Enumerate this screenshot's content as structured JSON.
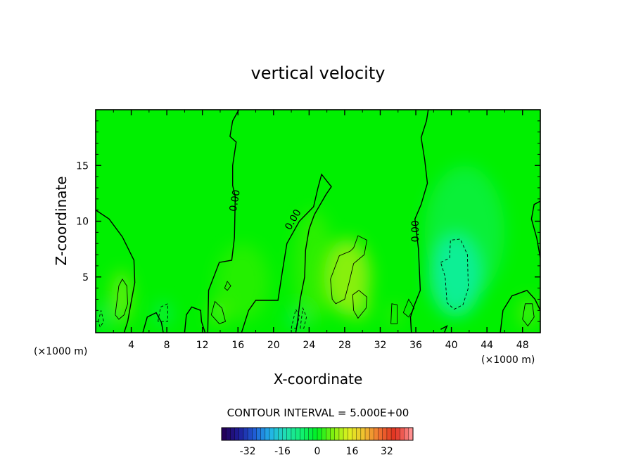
{
  "chart_data": {
    "type": "heatmap",
    "title": "vertical velocity",
    "xlabel": "X-coordinate",
    "ylabel": "Z-coordinate",
    "x_unit_label": "(×1000 m)",
    "xlim": [
      0,
      50
    ],
    "ylim": [
      0,
      20
    ],
    "x_ticks": [
      "4",
      "8",
      "12",
      "16",
      "20",
      "24",
      "28",
      "32",
      "36",
      "40",
      "44",
      "48"
    ],
    "y_ticks": [
      "5",
      "10",
      "15"
    ],
    "grid": false,
    "contour_interval_text": "CONTOUR INTERVAL = 5.000E+00",
    "contour_label": "0.00",
    "colorbar": {
      "range": [
        -44,
        44
      ],
      "tick_labels": [
        "-32",
        "-16",
        "0",
        "16",
        "32"
      ],
      "colors": [
        "#24005a",
        "#1e1e9a",
        "#2060d8",
        "#22b4e8",
        "#20e0b0",
        "#10f070",
        "#00f020",
        "#80f010",
        "#e0f020",
        "#f0c030",
        "#f07030",
        "#e03020",
        "#ff9090"
      ]
    },
    "field_colors": {
      "background": "#00f000",
      "positive": "#8ef010",
      "negative": "#10f0a0"
    },
    "zero_contours": [
      {
        "label": "0.00",
        "points": [
          [
            0,
            11.0
          ],
          [
            1.5,
            10.2
          ],
          [
            3.0,
            8.6
          ],
          [
            4.3,
            6.5
          ],
          [
            4.4,
            4.5
          ],
          [
            4.0,
            2.8
          ],
          [
            3.6,
            1.0
          ],
          [
            3.2,
            0
          ]
        ]
      },
      {
        "label": "",
        "points": [
          [
            5.3,
            0
          ],
          [
            5.8,
            1.4
          ],
          [
            6.8,
            1.8
          ],
          [
            7.4,
            0.9
          ],
          [
            7.6,
            0
          ]
        ]
      },
      {
        "label": "",
        "points": [
          [
            10.0,
            0
          ],
          [
            10.2,
            1.6
          ],
          [
            10.8,
            2.3
          ],
          [
            11.8,
            2.0
          ],
          [
            11.9,
            1.0
          ],
          [
            12.3,
            0
          ]
        ]
      },
      {
        "label": "0.00",
        "points": [
          [
            12.6,
            0
          ],
          [
            12.7,
            3.8
          ],
          [
            13.9,
            6.3
          ],
          [
            15.3,
            6.5
          ],
          [
            15.6,
            8.5
          ],
          [
            15.7,
            12.2
          ],
          [
            15.4,
            13.2
          ],
          [
            15.4,
            15.0
          ],
          [
            15.8,
            17.1
          ],
          [
            15.1,
            17.6
          ],
          [
            15.4,
            19.0
          ],
          [
            16.1,
            20.0
          ]
        ]
      },
      {
        "label": "0.00",
        "points": [
          [
            16.4,
            0
          ],
          [
            17.2,
            2.0
          ],
          [
            18.0,
            2.9
          ],
          [
            20.5,
            2.9
          ],
          [
            21.0,
            5.5
          ],
          [
            21.5,
            8.0
          ],
          [
            22.9,
            10.0
          ],
          [
            24.5,
            11.3
          ],
          [
            25.0,
            13.0
          ],
          [
            25.4,
            14.2
          ],
          [
            26.0,
            13.6
          ],
          [
            26.5,
            13.1
          ],
          [
            25.9,
            12.4
          ],
          [
            24.6,
            10.6
          ],
          [
            24.0,
            9.3
          ],
          [
            23.6,
            7.4
          ],
          [
            23.5,
            5.0
          ],
          [
            23.0,
            3.0
          ],
          [
            22.7,
            1.0
          ],
          [
            22.5,
            0
          ]
        ]
      },
      {
        "label": "0.00",
        "points": [
          [
            35.5,
            0
          ],
          [
            35.4,
            1.4
          ],
          [
            35.8,
            2.4
          ],
          [
            36.5,
            3.8
          ],
          [
            36.3,
            7.5
          ],
          [
            35.9,
            10.2
          ],
          [
            36.6,
            11.5
          ],
          [
            37.0,
            12.6
          ],
          [
            37.3,
            13.4
          ],
          [
            37.0,
            15.5
          ],
          [
            36.6,
            17.5
          ],
          [
            37.2,
            19.0
          ],
          [
            37.4,
            20.0
          ]
        ]
      },
      {
        "label": "",
        "points": [
          [
            50,
            6.7
          ],
          [
            49.6,
            8.5
          ],
          [
            49.0,
            10.2
          ],
          [
            49.3,
            11.5
          ],
          [
            50,
            11.8
          ]
        ]
      },
      {
        "label": "",
        "points": [
          [
            45.5,
            0
          ],
          [
            45.8,
            2.0
          ],
          [
            46.8,
            3.3
          ],
          [
            48.5,
            3.8
          ],
          [
            49.4,
            3.0
          ],
          [
            50,
            2.0
          ]
        ]
      },
      {
        "label": "",
        "points": [
          [
            38.8,
            0.3
          ],
          [
            39.5,
            0.6
          ],
          [
            39.2,
            0
          ]
        ]
      }
    ],
    "positive_contours": [
      {
        "points": [
          [
            2.2,
            1.6
          ],
          [
            2.6,
            4.2
          ],
          [
            3.0,
            4.8
          ],
          [
            3.5,
            4.2
          ],
          [
            3.6,
            2.6
          ],
          [
            3.2,
            1.6
          ],
          [
            2.6,
            1.2
          ],
          [
            2.2,
            1.6
          ]
        ]
      },
      {
        "points": [
          [
            26.6,
            3.0
          ],
          [
            26.4,
            4.8
          ],
          [
            27.4,
            6.9
          ],
          [
            28.6,
            7.3
          ],
          [
            29.0,
            7.6
          ],
          [
            29.5,
            8.7
          ],
          [
            30.5,
            8.3
          ],
          [
            30.2,
            7.0
          ],
          [
            29.0,
            6.2
          ],
          [
            28.5,
            4.5
          ],
          [
            28.0,
            3.0
          ],
          [
            27.0,
            2.6
          ],
          [
            26.6,
            3.0
          ]
        ]
      },
      {
        "points": [
          [
            28.9,
            3.4
          ],
          [
            29.6,
            3.8
          ],
          [
            30.5,
            3.2
          ],
          [
            30.4,
            2.2
          ],
          [
            29.5,
            1.3
          ],
          [
            29.0,
            2.0
          ],
          [
            28.9,
            3.4
          ]
        ]
      },
      {
        "points": [
          [
            13.0,
            1.6
          ],
          [
            13.4,
            2.8
          ],
          [
            14.2,
            2.2
          ],
          [
            14.6,
            1.0
          ],
          [
            13.9,
            0.8
          ],
          [
            13.0,
            1.6
          ]
        ]
      },
      {
        "points": [
          [
            48.0,
            1.2
          ],
          [
            48.3,
            2.6
          ],
          [
            49.1,
            2.6
          ],
          [
            49.3,
            1.4
          ],
          [
            48.6,
            0.6
          ],
          [
            48.0,
            1.2
          ]
        ]
      },
      {
        "points": [
          [
            33.2,
            0.8
          ],
          [
            33.3,
            2.6
          ],
          [
            33.9,
            2.5
          ],
          [
            33.9,
            0.8
          ],
          [
            33.2,
            0.8
          ]
        ]
      },
      {
        "points": [
          [
            34.6,
            1.8
          ],
          [
            35.2,
            3.0
          ],
          [
            35.8,
            2.2
          ],
          [
            35.2,
            1.4
          ],
          [
            34.6,
            1.8
          ]
        ]
      },
      {
        "points": [
          [
            14.5,
            4.0
          ],
          [
            14.8,
            4.6
          ],
          [
            15.2,
            4.2
          ],
          [
            14.8,
            3.8
          ],
          [
            14.5,
            4.0
          ]
        ]
      }
    ],
    "negative_contours": [
      {
        "points": [
          [
            38.8,
            6.3
          ],
          [
            39.8,
            6.7
          ],
          [
            39.9,
            8.3
          ],
          [
            41.0,
            8.4
          ],
          [
            41.8,
            7.0
          ],
          [
            41.9,
            4.0
          ],
          [
            41.3,
            2.5
          ],
          [
            40.3,
            2.1
          ],
          [
            39.5,
            2.7
          ],
          [
            39.3,
            5.0
          ],
          [
            38.8,
            6.3
          ]
        ]
      },
      {
        "points": [
          [
            7.0,
            1.0
          ],
          [
            7.3,
            2.3
          ],
          [
            8.1,
            2.6
          ],
          [
            8.1,
            1.0
          ],
          [
            7.0,
            1.0
          ]
        ]
      },
      {
        "points": [
          [
            22.0,
            0.4
          ],
          [
            22.5,
            2.1
          ],
          [
            22.9,
            1.5
          ],
          [
            22.6,
            0.4
          ],
          [
            22.0,
            0.4
          ]
        ]
      },
      {
        "points": [
          [
            23.0,
            0.4
          ],
          [
            23.3,
            2.2
          ],
          [
            23.7,
            1.4
          ],
          [
            23.4,
            0.4
          ],
          [
            23.0,
            0.4
          ]
        ]
      },
      {
        "points": [
          [
            0.3,
            1.0
          ],
          [
            0.6,
            2.0
          ],
          [
            0.9,
            1.0
          ],
          [
            0.5,
            0.5
          ],
          [
            0.3,
            1.0
          ]
        ]
      }
    ],
    "positive_regions": [
      {
        "cx": 28.3,
        "cy": 5.0,
        "rx": 2.6,
        "ry": 3.4,
        "strength": 0.95
      },
      {
        "cx": 29.6,
        "cy": 2.5,
        "rx": 1.2,
        "ry": 1.4,
        "strength": 0.7
      },
      {
        "cx": 2.9,
        "cy": 3.2,
        "rx": 1.1,
        "ry": 2.4,
        "strength": 0.7
      },
      {
        "cx": 13.8,
        "cy": 1.8,
        "rx": 1.0,
        "ry": 1.2,
        "strength": 0.5
      },
      {
        "cx": 48.6,
        "cy": 1.8,
        "rx": 1.0,
        "ry": 1.4,
        "strength": 0.5
      },
      {
        "cx": 33.6,
        "cy": 1.6,
        "rx": 0.6,
        "ry": 1.1,
        "strength": 0.4
      },
      {
        "cx": 24.5,
        "cy": 6.0,
        "rx": 2.2,
        "ry": 5.0,
        "strength": 0.3
      },
      {
        "cx": 16.5,
        "cy": 4.5,
        "rx": 3.0,
        "ry": 3.5,
        "strength": 0.25
      }
    ],
    "negative_regions": [
      {
        "cx": 40.5,
        "cy": 5.2,
        "rx": 3.0,
        "ry": 3.8,
        "strength": 0.9
      },
      {
        "cx": 41.5,
        "cy": 9.0,
        "rx": 4.5,
        "ry": 6.0,
        "strength": 0.35
      },
      {
        "cx": 7.6,
        "cy": 1.7,
        "rx": 0.8,
        "ry": 1.1,
        "strength": 0.5
      },
      {
        "cx": 22.6,
        "cy": 1.2,
        "rx": 1.1,
        "ry": 1.0,
        "strength": 0.4
      },
      {
        "cx": 0.6,
        "cy": 1.4,
        "rx": 0.8,
        "ry": 1.2,
        "strength": 0.4
      }
    ]
  }
}
